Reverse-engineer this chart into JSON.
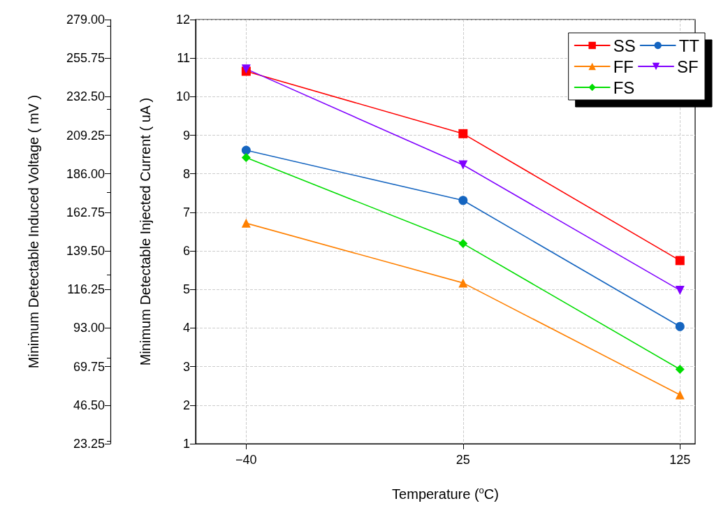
{
  "chart_data": {
    "type": "line",
    "xlabel": "Temperature ($^{o}$C)",
    "ylabel": "Minimum Detectable Injected Current ( uA )",
    "y2label": "Minimum Detectable Induced Voltage ( mV )",
    "categories": [
      "−40",
      "25",
      "125"
    ],
    "series": [
      {
        "name": "SS",
        "color": "#ff0000",
        "marker": "square",
        "values": [
          10.66,
          9.04,
          5.75
        ]
      },
      {
        "name": "TT",
        "color": "#1565c0",
        "marker": "circle",
        "values": [
          8.61,
          7.31,
          4.04
        ]
      },
      {
        "name": "FF",
        "color": "#ff8000",
        "marker": "triangle",
        "values": [
          6.72,
          5.17,
          2.27
        ]
      },
      {
        "name": "SF",
        "color": "#8000ff",
        "marker": "triangle-down",
        "values": [
          10.72,
          8.23,
          4.98
        ]
      },
      {
        "name": "FS",
        "color": "#00dd00",
        "marker": "diamond",
        "values": [
          8.42,
          6.19,
          2.93
        ]
      }
    ],
    "ylim": [
      1,
      12
    ],
    "yticks": [
      1,
      2,
      3,
      4,
      5,
      6,
      7,
      8,
      9,
      10,
      11,
      12
    ],
    "y2lim": [
      23.25,
      279
    ],
    "y2ticks": [
      {
        "value": 23.25,
        "label": "23.25"
      },
      {
        "value": 46.5,
        "label": "46.50"
      },
      {
        "value": 69.75,
        "label": "69.75"
      },
      {
        "value": 93,
        "label": "93.00"
      },
      {
        "value": 116.25,
        "label": "116.25"
      },
      {
        "value": 139.5,
        "label": "139.50"
      },
      {
        "value": 162.75,
        "label": "162.75"
      },
      {
        "value": 186,
        "label": "186.00"
      },
      {
        "value": 209.25,
        "label": "209.25"
      },
      {
        "value": 232.5,
        "label": "232.50"
      },
      {
        "value": 255.75,
        "label": "255.75"
      },
      {
        "value": 279,
        "label": "279.00"
      }
    ],
    "grid": true,
    "legend": "top right",
    "line_style": "solid"
  }
}
